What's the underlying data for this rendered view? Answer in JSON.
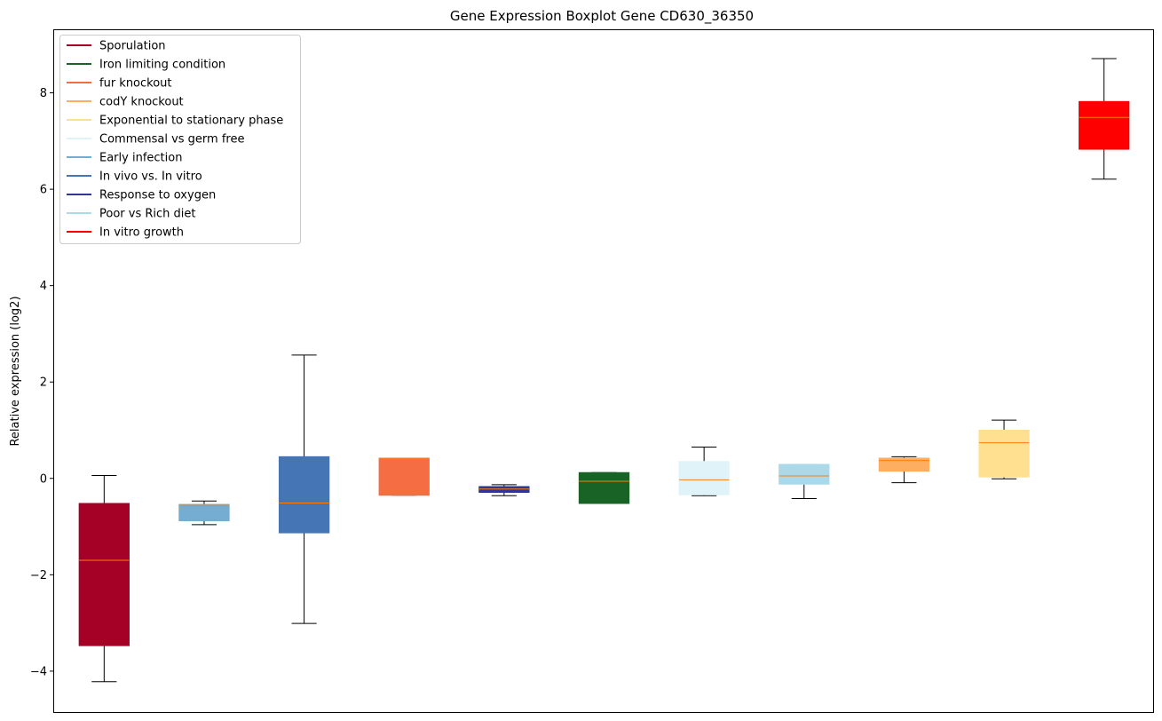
{
  "chart_data": {
    "type": "boxplot",
    "title": "Gene Expression Boxplot Gene CD630_36350",
    "xlabel": "",
    "ylabel": "Relative expression (log2)",
    "ylim": [
      -4.85,
      9.3
    ],
    "yticks": [
      -4,
      -2,
      0,
      2,
      4,
      6,
      8
    ],
    "ytick_labels": [
      "−4",
      "−2",
      "0",
      "2",
      "4",
      "6",
      "8"
    ],
    "x_ticks_visible": false,
    "grid": false,
    "legend_position": "top-left",
    "median_color": "#ff7f0e",
    "series": [
      {
        "name": "Sporulation",
        "color": "#a50026",
        "whisker_low": -4.22,
        "q1": -3.47,
        "median": -1.7,
        "q3": -0.52,
        "whisker_high": 0.06
      },
      {
        "name": "Early infection",
        "color": "#74add1",
        "whisker_low": -0.96,
        "q1": -0.88,
        "median": -0.56,
        "q3": -0.54,
        "whisker_high": -0.47
      },
      {
        "name": "In vivo vs. In vitro",
        "color": "#4575b4",
        "whisker_low": -3.01,
        "q1": -1.13,
        "median": -0.51,
        "q3": 0.45,
        "whisker_high": 2.56
      },
      {
        "name": "fur knockout",
        "color": "#f46d43",
        "whisker_low": -0.35,
        "q1": -0.35,
        "median": 0.42,
        "q3": 0.42,
        "whisker_high": 0.42
      },
      {
        "name": "Response to oxygen",
        "color": "#313695",
        "whisker_low": -0.36,
        "q1": -0.29,
        "median": -0.22,
        "q3": -0.17,
        "whisker_high": -0.13
      },
      {
        "name": "Iron limiting condition",
        "color": "#1a6326",
        "whisker_low": -0.52,
        "q1": -0.52,
        "median": -0.06,
        "q3": 0.12,
        "whisker_high": 0.12
      },
      {
        "name": "Commensal vs germ free",
        "color": "#e0f3f8",
        "whisker_low": -0.36,
        "q1": -0.34,
        "median": -0.03,
        "q3": 0.35,
        "whisker_high": 0.65
      },
      {
        "name": "Poor vs Rich diet",
        "color": "#abd9e9",
        "whisker_low": -0.42,
        "q1": -0.12,
        "median": 0.05,
        "q3": 0.29,
        "whisker_high": 0.29
      },
      {
        "name": "codY knockout",
        "color": "#fdae61",
        "whisker_low": -0.09,
        "q1": 0.15,
        "median": 0.37,
        "q3": 0.42,
        "whisker_high": 0.45
      },
      {
        "name": "Exponential to stationary phase",
        "color": "#fee090",
        "whisker_low": -0.01,
        "q1": 0.03,
        "median": 0.74,
        "q3": 1.0,
        "whisker_high": 1.21
      },
      {
        "name": "In vitro growth",
        "color": "#ff0000",
        "whisker_low": 6.21,
        "q1": 6.83,
        "median": 7.49,
        "q3": 7.82,
        "whisker_high": 8.71
      }
    ],
    "legend": [
      {
        "label": "Sporulation",
        "color": "#a50026"
      },
      {
        "label": "Iron limiting condition",
        "color": "#1a6326"
      },
      {
        "label": "fur knockout",
        "color": "#f46d43"
      },
      {
        "label": "codY knockout",
        "color": "#fdae61"
      },
      {
        "label": "Exponential to stationary phase",
        "color": "#fee090"
      },
      {
        "label": "Commensal vs germ free",
        "color": "#e0f3f8"
      },
      {
        "label": "Early infection",
        "color": "#74add1"
      },
      {
        "label": "In vivo vs. In vitro",
        "color": "#4575b4"
      },
      {
        "label": "Response to oxygen",
        "color": "#313695"
      },
      {
        "label": "Poor vs Rich diet",
        "color": "#abd9e9"
      },
      {
        "label": "In vitro growth",
        "color": "#ff0000"
      }
    ]
  }
}
